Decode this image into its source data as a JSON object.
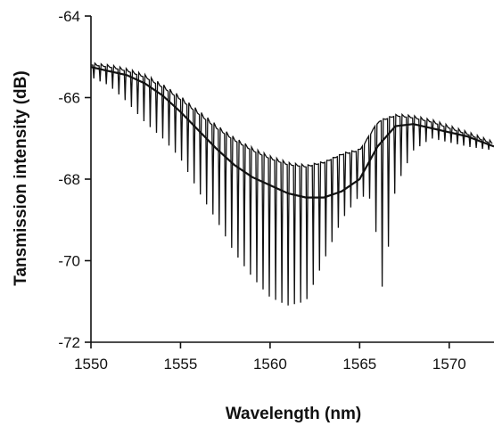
{
  "chart_data": {
    "type": "line",
    "title": "",
    "xlabel": "Wavelength (nm)",
    "ylabel": "Tansmission intensity (dB)",
    "xlim": [
      1550,
      1572.5
    ],
    "ylim": [
      -72,
      -64
    ],
    "xticks": [
      1550,
      1555,
      1560,
      1565,
      1570
    ],
    "xtick_labels": [
      "1550",
      "1555",
      "1560",
      "1565",
      "1570"
    ],
    "yticks": [
      -72,
      -70,
      -68,
      -66,
      -64
    ],
    "ytick_labels": [
      "-72",
      "-70",
      "-68",
      "-66",
      "-64"
    ],
    "grid": false,
    "legend": "none",
    "line_color": "#111111",
    "series": [
      {
        "style": "smooth-envelope",
        "x": [
          1550,
          1551,
          1552,
          1553,
          1554,
          1555,
          1556,
          1557,
          1558,
          1559,
          1560,
          1561,
          1562,
          1563,
          1564,
          1565,
          1566,
          1567,
          1568,
          1569,
          1570,
          1571,
          1572.5
        ],
        "y": [
          -65.25,
          -65.35,
          -65.45,
          -65.65,
          -65.95,
          -66.35,
          -66.8,
          -67.25,
          -67.65,
          -67.95,
          -68.15,
          -68.35,
          -68.45,
          -68.45,
          -68.3,
          -68.0,
          -67.2,
          -66.7,
          -66.65,
          -66.75,
          -66.85,
          -66.95,
          -67.2
        ]
      },
      {
        "style": "comb-fringes",
        "period_nm": 0.35,
        "base_x": [
          1550,
          1551,
          1552,
          1553,
          1554,
          1555,
          1556,
          1557,
          1558,
          1559,
          1560,
          1561,
          1562,
          1563,
          1564,
          1565,
          1566,
          1567,
          1568,
          1569,
          1570,
          1571,
          1572.5
        ],
        "base_y": [
          -65.2,
          -65.25,
          -65.35,
          -65.5,
          -65.75,
          -66.05,
          -66.4,
          -66.75,
          -67.05,
          -67.3,
          -67.5,
          -67.65,
          -67.7,
          -67.6,
          -67.4,
          -67.3,
          -66.6,
          -66.45,
          -66.5,
          -66.6,
          -66.75,
          -66.9,
          -67.15
        ],
        "dip_x": [
          1550,
          1551,
          1552,
          1553,
          1554,
          1555,
          1556,
          1557,
          1558,
          1559,
          1560,
          1561,
          1562,
          1563,
          1564,
          1565,
          1565.7,
          1566.3,
          1567,
          1568,
          1569,
          1570,
          1571,
          1572.5
        ],
        "dip_y": [
          -65.5,
          -65.7,
          -66.1,
          -66.6,
          -67.0,
          -67.5,
          -68.3,
          -69.0,
          -69.8,
          -70.4,
          -70.9,
          -71.1,
          -71.0,
          -70.0,
          -69.0,
          -68.4,
          -68.5,
          -70.8,
          -68.2,
          -67.3,
          -67.0,
          -67.1,
          -67.2,
          -67.3
        ]
      }
    ]
  }
}
